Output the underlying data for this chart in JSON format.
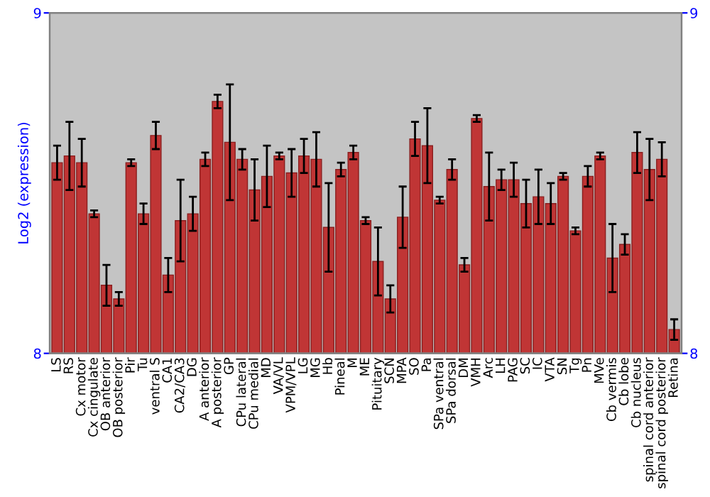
{
  "chart_data": {
    "type": "bar",
    "ylabel": "Log2 (expression)",
    "categories": [
      "LS",
      "RS",
      "Cx motor",
      "Cx cingulate",
      "OB anterior",
      "OB posterior",
      "Pir",
      "Tu",
      "ventral S",
      "CA1",
      "CA2/CA3",
      "DG",
      "A anterior",
      "A posterior",
      "GP",
      "CPu lateral",
      "CPu medial",
      "MD",
      "VA/VL",
      "VPM/VPL",
      "LG",
      "MG",
      "Hb",
      "Pineal",
      "M",
      "ME",
      "Pituitary",
      "SCN",
      "MPA",
      "SO",
      "Pa",
      "SPa ventral",
      "SPa dorsal",
      "DM",
      "VMH",
      "Arc",
      "LH",
      "PAG",
      "SC",
      "IC",
      "VTA",
      "SN",
      "Tg",
      "Pn",
      "MVe",
      "Cb vermis",
      "Cb lobe",
      "Cb nucleus",
      "spinal cord anterior",
      "spinal cord posterior",
      "Retina"
    ],
    "values": [
      8.56,
      8.58,
      8.56,
      8.41,
      8.2,
      8.16,
      8.56,
      8.41,
      8.64,
      8.23,
      8.39,
      8.41,
      8.57,
      8.74,
      8.62,
      8.57,
      8.48,
      8.52,
      8.58,
      8.53,
      8.58,
      8.57,
      8.37,
      8.54,
      8.59,
      8.39,
      8.27,
      8.16,
      8.4,
      8.63,
      8.61,
      8.45,
      8.54,
      8.26,
      8.69,
      8.49,
      8.51,
      8.51,
      8.44,
      8.46,
      8.44,
      8.52,
      8.36,
      8.52,
      8.58,
      8.28,
      8.32,
      8.59,
      8.54,
      8.57,
      8.07
    ],
    "errors": [
      0.05,
      0.1,
      0.07,
      0.01,
      0.06,
      0.02,
      0.01,
      0.03,
      0.04,
      0.05,
      0.12,
      0.05,
      0.02,
      0.02,
      0.17,
      0.03,
      0.09,
      0.09,
      0.01,
      0.07,
      0.05,
      0.08,
      0.13,
      0.02,
      0.02,
      0.01,
      0.1,
      0.04,
      0.09,
      0.05,
      0.11,
      0.01,
      0.03,
      0.02,
      0.01,
      0.1,
      0.03,
      0.05,
      0.07,
      0.08,
      0.06,
      0.01,
      0.01,
      0.03,
      0.01,
      0.1,
      0.03,
      0.06,
      0.09,
      0.05,
      0.03
    ],
    "color": "#c03535",
    "ylim": [
      8,
      9
    ],
    "yticks": [
      8,
      9
    ],
    "y2lim": [
      8,
      9
    ],
    "y2ticks": [
      8,
      9
    ],
    "grid": false
  }
}
